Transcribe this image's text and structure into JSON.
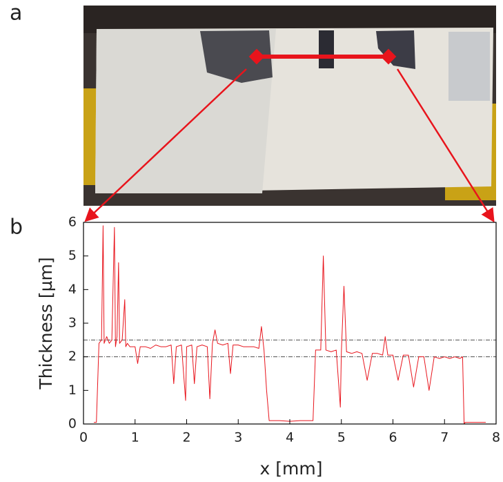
{
  "panel_a": {
    "label": "a"
  },
  "chart_data": {
    "type": "line",
    "panel_label": "b",
    "xlabel": "x [mm]",
    "ylabel": "Thickness [µm]",
    "xlim": [
      0,
      8
    ],
    "ylim": [
      0,
      6
    ],
    "xticks": [
      0,
      1,
      2,
      3,
      4,
      5,
      6,
      7,
      8
    ],
    "yticks": [
      0,
      1,
      2,
      3,
      4,
      5,
      6
    ],
    "reference_lines": [
      2,
      2.5
    ],
    "series": [
      {
        "color": "#e8141c",
        "x": [
          0.2,
          0.25,
          0.3,
          0.35,
          0.38,
          0.4,
          0.45,
          0.5,
          0.55,
          0.6,
          0.62,
          0.65,
          0.68,
          0.7,
          0.75,
          0.8,
          0.82,
          0.85,
          0.9,
          1.0,
          1.05,
          1.1,
          1.2,
          1.3,
          1.4,
          1.5,
          1.6,
          1.7,
          1.75,
          1.8,
          1.9,
          1.98,
          2.0,
          2.1,
          2.15,
          2.2,
          2.3,
          2.4,
          2.45,
          2.5,
          2.55,
          2.6,
          2.7,
          2.8,
          2.85,
          2.9,
          3.0,
          3.1,
          3.2,
          3.3,
          3.4,
          3.45,
          3.5,
          3.55,
          3.6,
          3.8,
          4.0,
          4.2,
          4.45,
          4.5,
          4.6,
          4.65,
          4.7,
          4.8,
          4.9,
          4.98,
          5.0,
          5.05,
          5.1,
          5.2,
          5.3,
          5.4,
          5.5,
          5.6,
          5.7,
          5.8,
          5.85,
          5.9,
          6.0,
          6.1,
          6.2,
          6.3,
          6.4,
          6.5,
          6.6,
          6.7,
          6.8,
          6.9,
          7.0,
          7.1,
          7.2,
          7.3,
          7.35,
          7.38,
          7.4,
          7.6,
          7.8
        ],
        "values": [
          0.05,
          0.05,
          2.4,
          2.5,
          5.9,
          2.4,
          2.6,
          2.4,
          2.5,
          5.85,
          2.3,
          2.6,
          4.8,
          2.4,
          2.5,
          3.7,
          2.3,
          2.4,
          2.3,
          2.3,
          1.8,
          2.3,
          2.3,
          2.25,
          2.35,
          2.3,
          2.3,
          2.35,
          1.2,
          2.3,
          2.35,
          0.7,
          2.3,
          2.35,
          1.2,
          2.3,
          2.35,
          2.3,
          0.75,
          2.4,
          2.8,
          2.4,
          2.35,
          2.4,
          1.5,
          2.35,
          2.35,
          2.3,
          2.3,
          2.3,
          2.25,
          2.9,
          2.2,
          1.0,
          0.1,
          0.1,
          0.08,
          0.1,
          0.1,
          2.2,
          2.2,
          5.0,
          2.2,
          2.15,
          2.2,
          0.5,
          2.15,
          4.1,
          2.15,
          2.1,
          2.15,
          2.1,
          1.3,
          2.1,
          2.1,
          2.05,
          2.6,
          2.05,
          2.05,
          1.3,
          2.05,
          2.05,
          1.1,
          2.0,
          2.0,
          1.0,
          2.0,
          1.95,
          2.0,
          1.95,
          2.0,
          1.95,
          2.0,
          0.0,
          0.05,
          0.05,
          0.05
        ]
      }
    ]
  }
}
